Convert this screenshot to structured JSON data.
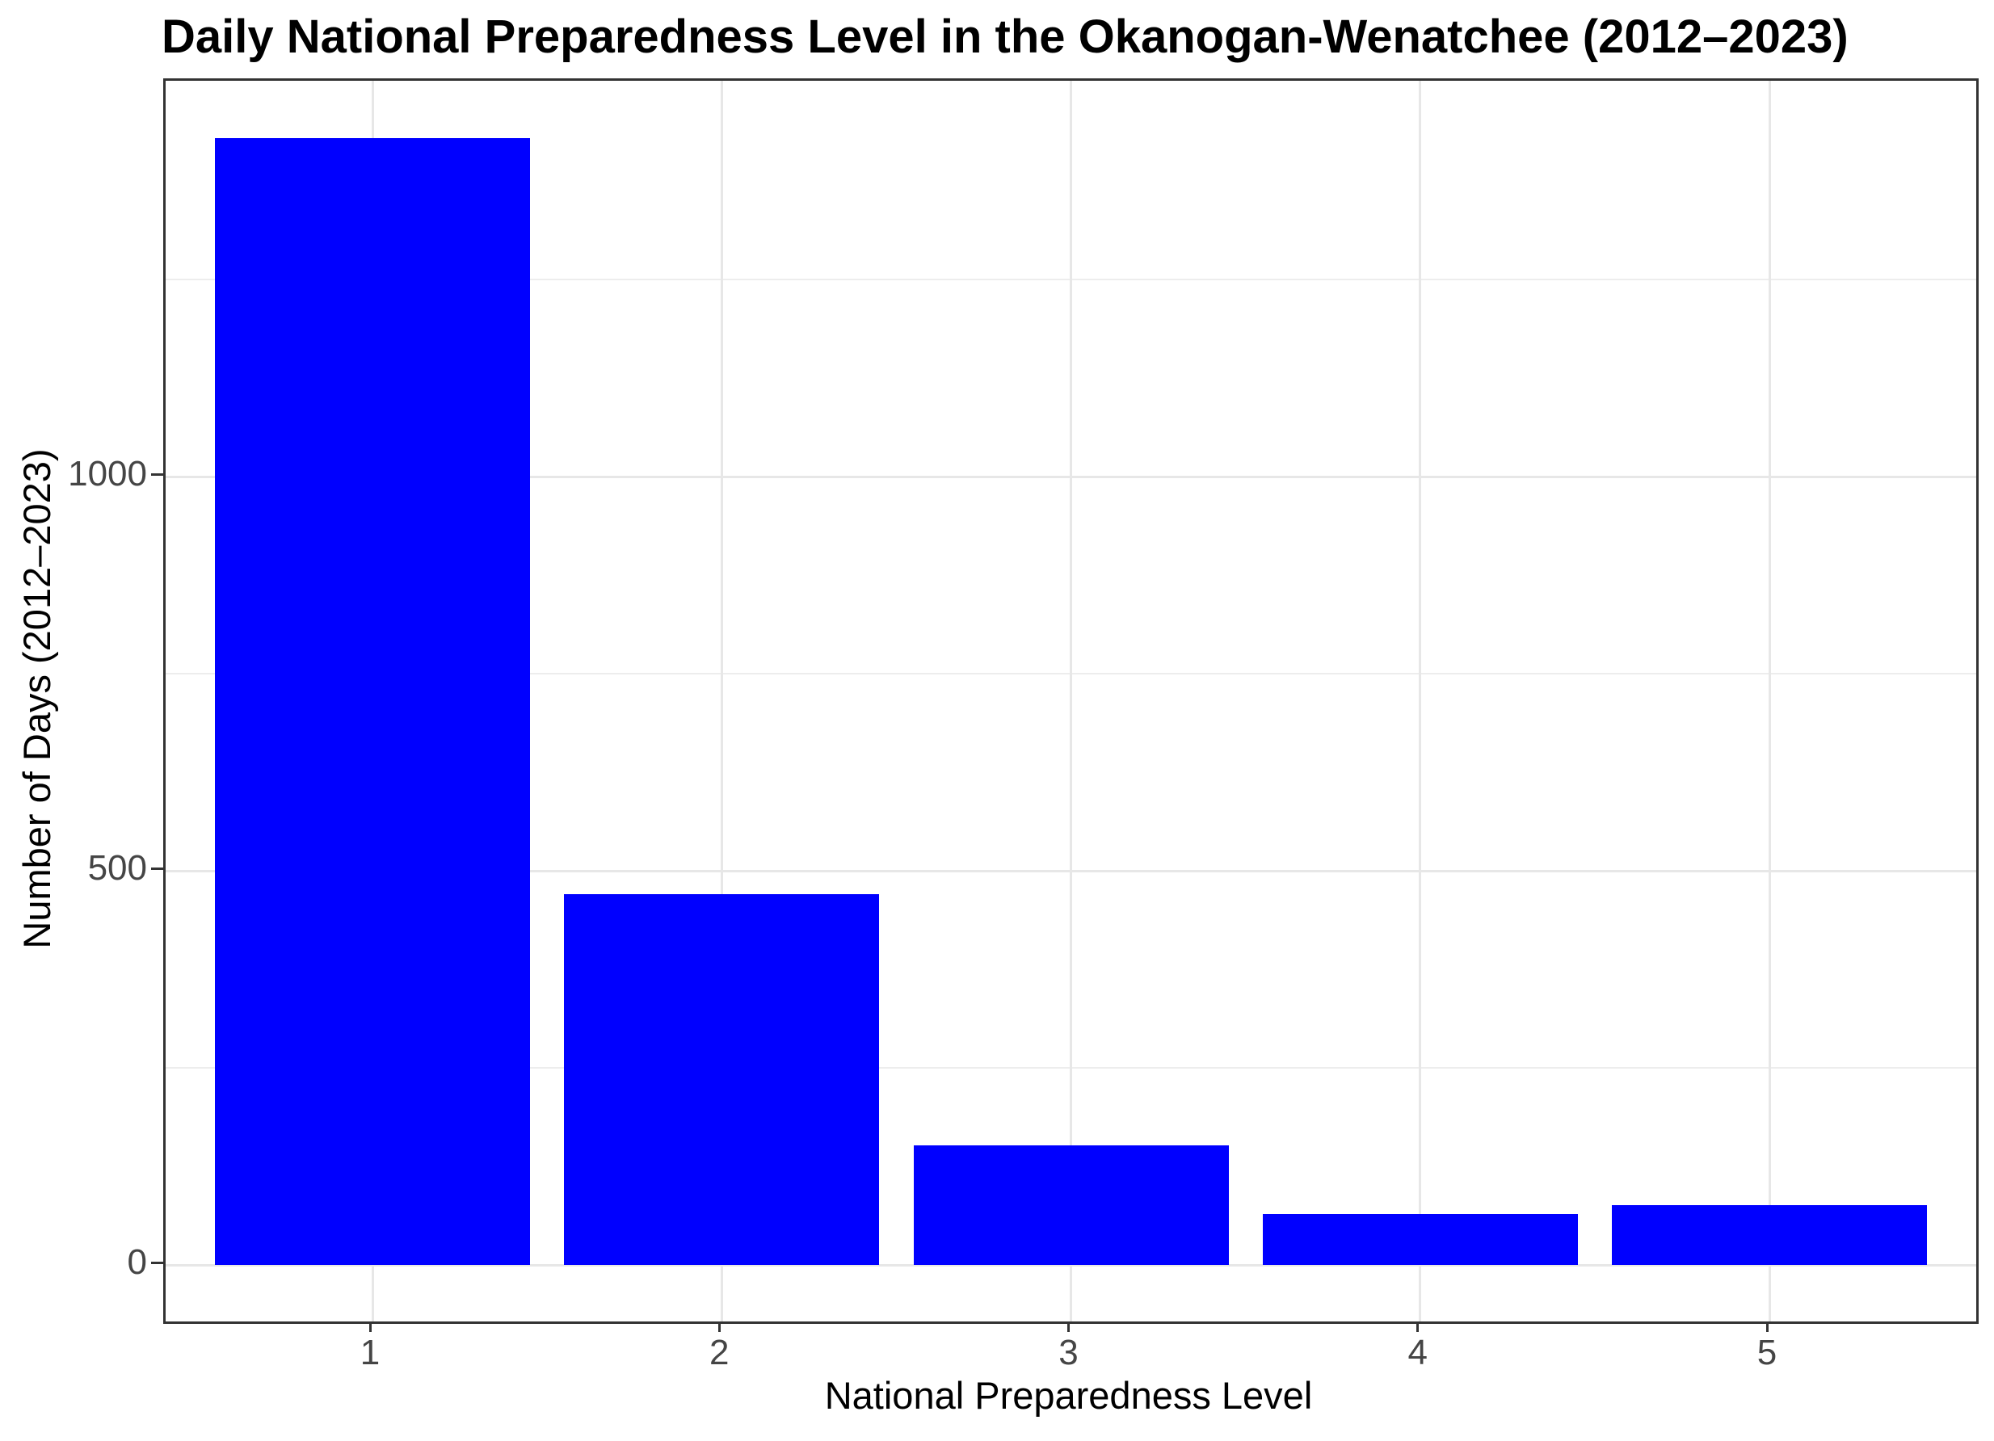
{
  "chart_data": {
    "type": "bar",
    "title": "Daily National Preparedness Level in the Okanogan-Wenatchee (2012–2023)",
    "xlabel": "National Preparedness Level",
    "ylabel": "Number of Days (2012–2023)",
    "categories": [
      "1",
      "2",
      "3",
      "4",
      "5"
    ],
    "values": [
      1429,
      470,
      152,
      65,
      76
    ],
    "ylim": [
      0,
      1502
    ],
    "yticks": [
      0,
      500,
      1000
    ],
    "ytick_labels": [
      "0",
      "500",
      "1000"
    ],
    "yminor": [
      250,
      750,
      1250
    ],
    "bar_color": "#0000ff",
    "grid": "on",
    "legend": "none",
    "panel_border_color": "#333333",
    "background_color": "#ffffff"
  }
}
